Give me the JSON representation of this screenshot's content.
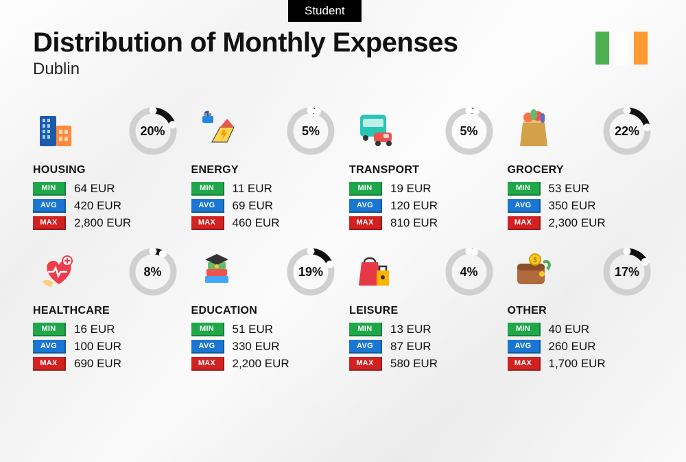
{
  "badge": "Student",
  "title": "Distribution of Monthly Expenses",
  "city": "Dublin",
  "flag_colors": [
    "#4caf50",
    "#ffffff",
    "#ff9933"
  ],
  "currency": "EUR",
  "donut": {
    "radius": 30,
    "stroke_width": 9,
    "track_color": "#d0d0d0",
    "fill_color": "#111111",
    "endcap_color": "#ffffff",
    "pct_fontsize": 18
  },
  "tag_colors": {
    "min": "#1fa84a",
    "avg": "#1976d2",
    "max": "#d32121"
  },
  "tag_labels": {
    "min": "MIN",
    "avg": "AVG",
    "max": "MAX"
  },
  "categories": [
    {
      "name": "HOUSING",
      "pct": 20,
      "min": "64",
      "avg": "420",
      "max": "2,800",
      "icon": "housing"
    },
    {
      "name": "ENERGY",
      "pct": 5,
      "min": "11",
      "avg": "69",
      "max": "460",
      "icon": "energy"
    },
    {
      "name": "TRANSPORT",
      "pct": 5,
      "min": "19",
      "avg": "120",
      "max": "810",
      "icon": "transport"
    },
    {
      "name": "GROCERY",
      "pct": 22,
      "min": "53",
      "avg": "350",
      "max": "2,300",
      "icon": "grocery"
    },
    {
      "name": "HEALTHCARE",
      "pct": 8,
      "min": "16",
      "avg": "100",
      "max": "690",
      "icon": "healthcare"
    },
    {
      "name": "EDUCATION",
      "pct": 19,
      "min": "51",
      "avg": "330",
      "max": "2,200",
      "icon": "education"
    },
    {
      "name": "LEISURE",
      "pct": 4,
      "min": "13",
      "avg": "87",
      "max": "580",
      "icon": "leisure"
    },
    {
      "name": "OTHER",
      "pct": 17,
      "min": "40",
      "avg": "260",
      "max": "1,700",
      "icon": "other"
    }
  ]
}
